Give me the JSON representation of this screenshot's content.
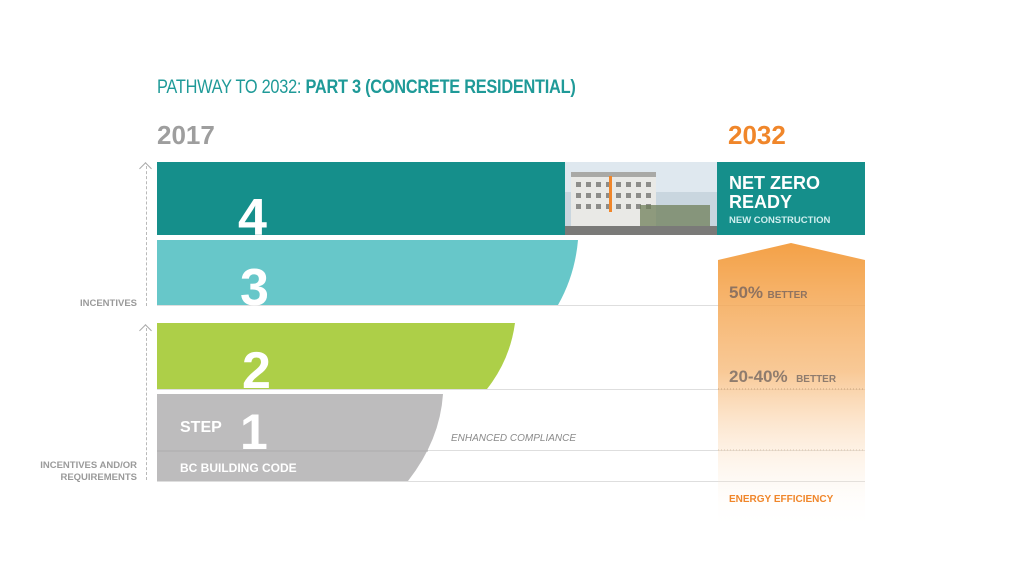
{
  "title": {
    "prefix": "PATHWAY TO 2032:",
    "emphasis": "PART 3 (CONCRETE RESIDENTIAL)"
  },
  "year_start": "2017",
  "year_end": "2032",
  "axis_labels": {
    "upper": "INCENTIVES",
    "lower_line1": "INCENTIVES AND/OR",
    "lower_line2": "REQUIREMENTS"
  },
  "steps": [
    {
      "number": "1",
      "prefix": "STEP",
      "caption": "BC BUILDING CODE",
      "color": "#bdbcbd"
    },
    {
      "number": "2",
      "color": "#adcf48"
    },
    {
      "number": "3",
      "color": "#67c7c9"
    },
    {
      "number": "4",
      "color": "#158f8b"
    }
  ],
  "enhanced_label": "ENHANCED COMPLIANCE",
  "goal": {
    "line1": "NET ZERO",
    "line2": "READY",
    "sub": "NEW CONSTRUCTION",
    "color": "#158f8b"
  },
  "efficiency": {
    "level_high": {
      "value": "50%",
      "suffix": "BETTER"
    },
    "level_mid": {
      "value": "20-40%",
      "suffix": "BETTER"
    },
    "label": "ENERGY EFFICIENCY",
    "color": "#f39c3d"
  },
  "colors": {
    "title": "#1f9a98",
    "year_start": "#9e9e9e",
    "year_end": "#f0862a"
  }
}
